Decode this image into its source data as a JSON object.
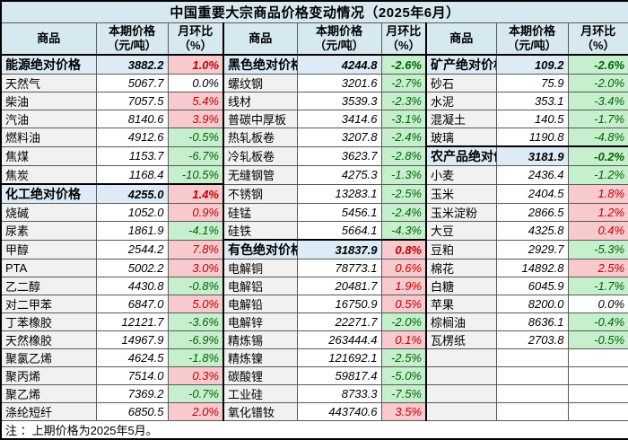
{
  "title": "中国重要大宗商品价格变动情况（2025年6月）",
  "header": {
    "commodity": "商品",
    "price_line1": "本期价格",
    "price_line2": "（元/吨）",
    "mom_line1": "月环比",
    "mom_line2": "（%）"
  },
  "note": "注 ：上期价格为2025年5月。",
  "colors": {
    "header_bg": "#D6E9F1",
    "section_bg": "#DCEBF5",
    "name_column_bg": "#F1F1F1",
    "increase_bg": "#F8C9CD",
    "increase_text": "#C00000",
    "decrease_bg": "#C6EFCE",
    "decrease_text": "#006400"
  },
  "chart_data": {
    "type": "table",
    "columns": [
      "商品",
      "本期价格（元/吨）",
      "月环比（%）"
    ],
    "groups": [
      {
        "rows": [
          {
            "name": "能源绝对价格",
            "price": "3882.2",
            "mom": "1.0%",
            "section": true
          },
          {
            "name": "天然气",
            "price": "5067.7",
            "mom": "0.0%"
          },
          {
            "name": "柴油",
            "price": "7057.5",
            "mom": "5.4%"
          },
          {
            "name": "汽油",
            "price": "8140.6",
            "mom": "3.9%"
          },
          {
            "name": "燃料油",
            "price": "4912.6",
            "mom": "-0.5%"
          },
          {
            "name": "焦煤",
            "price": "1153.7",
            "mom": "-6.7%"
          },
          {
            "name": "焦炭",
            "price": "1168.4",
            "mom": "-10.5%"
          },
          {
            "name": "化工绝对价格",
            "price": "4255.0",
            "mom": "1.4%",
            "section": true
          },
          {
            "name": "烧碱",
            "price": "1052.0",
            "mom": "0.9%"
          },
          {
            "name": "尿素",
            "price": "1861.9",
            "mom": "-4.1%"
          },
          {
            "name": "甲醇",
            "price": "2544.2",
            "mom": "7.8%"
          },
          {
            "name": "PTA",
            "price": "5002.2",
            "mom": "3.0%"
          },
          {
            "name": "乙二醇",
            "price": "4430.8",
            "mom": "-0.8%"
          },
          {
            "name": "对二甲苯",
            "price": "6847.0",
            "mom": "5.0%"
          },
          {
            "name": "丁苯橡胶",
            "price": "12121.7",
            "mom": "-3.6%"
          },
          {
            "name": "天然橡胶",
            "price": "14967.9",
            "mom": "-6.9%"
          },
          {
            "name": "聚氯乙烯",
            "price": "4624.5",
            "mom": "-1.8%"
          },
          {
            "name": "聚丙烯",
            "price": "7514.0",
            "mom": "0.3%"
          },
          {
            "name": "聚乙烯",
            "price": "7369.2",
            "mom": "-0.7%"
          },
          {
            "name": "涤纶短纤",
            "price": "6850.5",
            "mom": "2.0%"
          }
        ]
      },
      {
        "rows": [
          {
            "name": "黑色绝对价格",
            "price": "4244.8",
            "mom": "-2.6%",
            "section": true
          },
          {
            "name": "螺纹钢",
            "price": "3201.6",
            "mom": "-2.7%"
          },
          {
            "name": "线材",
            "price": "3539.3",
            "mom": "-2.3%"
          },
          {
            "name": "普碳中厚板",
            "price": "3414.6",
            "mom": "-3.1%"
          },
          {
            "name": "热轧板卷",
            "price": "3207.8",
            "mom": "-2.4%"
          },
          {
            "name": "冷轧板卷",
            "price": "3623.7",
            "mom": "-2.8%"
          },
          {
            "name": "无缝钢管",
            "price": "4275.3",
            "mom": "-1.3%"
          },
          {
            "name": "不锈钢",
            "price": "13283.1",
            "mom": "-2.5%"
          },
          {
            "name": "硅锰",
            "price": "5456.1",
            "mom": "-2.4%"
          },
          {
            "name": "硅铁",
            "price": "5664.1",
            "mom": "-4.3%"
          },
          {
            "name": "有色绝对价格",
            "price": "31837.9",
            "mom": "0.8%",
            "section": true
          },
          {
            "name": "电解铜",
            "price": "78773.1",
            "mom": "0.6%"
          },
          {
            "name": "电解铝",
            "price": "20481.7",
            "mom": "1.9%"
          },
          {
            "name": "电解铅",
            "price": "16750.9",
            "mom": "0.5%"
          },
          {
            "name": "电解锌",
            "price": "22271.7",
            "mom": "-2.0%"
          },
          {
            "name": "精炼锡",
            "price": "263444.4",
            "mom": "0.1%"
          },
          {
            "name": "精炼镍",
            "price": "121692.1",
            "mom": "-2.5%"
          },
          {
            "name": "碳酸锂",
            "price": "59817.4",
            "mom": "-5.0%"
          },
          {
            "name": "工业硅",
            "price": "8733.3",
            "mom": "-7.5%"
          },
          {
            "name": "氧化镨钕",
            "price": "443740.6",
            "mom": "3.5%"
          }
        ]
      },
      {
        "rows": [
          {
            "name": "矿产绝对价格",
            "price": "109.2",
            "mom": "-2.6%",
            "section": true
          },
          {
            "name": "砂石",
            "price": "75.9",
            "mom": "-2.0%"
          },
          {
            "name": "水泥",
            "price": "353.1",
            "mom": "-3.4%"
          },
          {
            "name": "混凝土",
            "price": "140.5",
            "mom": "-1.7%"
          },
          {
            "name": "玻璃",
            "price": "1190.8",
            "mom": "-4.8%"
          },
          {
            "name": "农产品绝对价格",
            "price": "3181.9",
            "mom": "-0.2%",
            "section": true
          },
          {
            "name": "小麦",
            "price": "2436.4",
            "mom": "-1.2%"
          },
          {
            "name": "玉米",
            "price": "2404.5",
            "mom": "1.8%"
          },
          {
            "name": "玉米淀粉",
            "price": "2866.5",
            "mom": "1.2%"
          },
          {
            "name": "大豆",
            "price": "4325.8",
            "mom": "0.4%"
          },
          {
            "name": "豆粕",
            "price": "2929.7",
            "mom": "-5.3%"
          },
          {
            "name": "棉花",
            "price": "14892.8",
            "mom": "2.5%"
          },
          {
            "name": "白糖",
            "price": "6045.9",
            "mom": "-1.7%"
          },
          {
            "name": "苹果",
            "price": "8200.0",
            "mom": "0.0%"
          },
          {
            "name": "棕榈油",
            "price": "8636.1",
            "mom": "-0.4%"
          },
          {
            "name": "瓦楞纸",
            "price": "2703.8",
            "mom": "-0.5%"
          }
        ]
      }
    ]
  }
}
